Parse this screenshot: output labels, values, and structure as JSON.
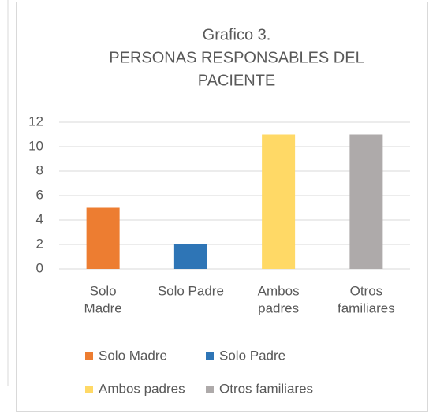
{
  "chart_data": {
    "type": "bar",
    "title": [
      "Grafico 3.",
      "PERSONAS RESPONSABLES DEL",
      "PACIENTE"
    ],
    "categories": [
      [
        "Solo",
        "Madre"
      ],
      [
        "Solo Padre"
      ],
      [
        "Ambos",
        "padres"
      ],
      [
        "Otros",
        "familiares"
      ]
    ],
    "values": [
      5,
      2,
      11,
      11
    ],
    "colors": [
      "#ed7d31",
      "#2e75b6",
      "#ffd966",
      "#aeaaaa"
    ],
    "legend": [
      "Solo Madre",
      "Solo Padre",
      "Ambos padres",
      "Otros familiares"
    ],
    "ylim": [
      0,
      12
    ],
    "yticks": [
      0,
      2,
      4,
      6,
      8,
      10,
      12
    ],
    "grid": true
  }
}
